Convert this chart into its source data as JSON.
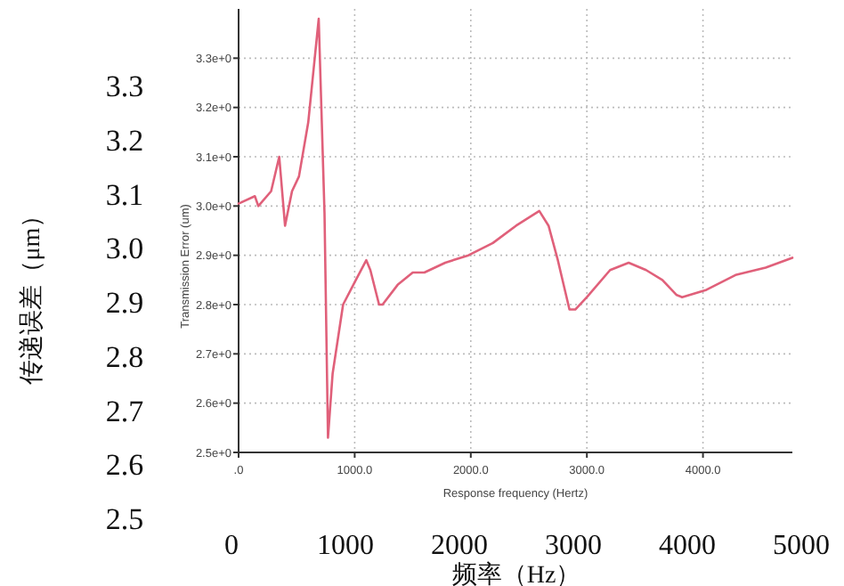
{
  "chart_data": {
    "type": "line",
    "xlabel": "Response frequency (Hertz)",
    "ylabel": "Transmission Error (um)",
    "x2label": "频率（Hz）",
    "y2label": "传递误差（μm）",
    "xlim": [
      0,
      4770
    ],
    "ylim": [
      2.5,
      3.4
    ],
    "xticks": [
      {
        "value": 0,
        "label": ".0"
      },
      {
        "value": 1000,
        "label": "1000.0"
      },
      {
        "value": 2000,
        "label": "2000.0"
      },
      {
        "value": 3000,
        "label": "3000.0"
      },
      {
        "value": 4000,
        "label": "4000.0"
      }
    ],
    "yticks": [
      {
        "value": 2.5,
        "label": "2.5e+0"
      },
      {
        "value": 2.6,
        "label": "2.6e+0"
      },
      {
        "value": 2.7,
        "label": "2.7e+0"
      },
      {
        "value": 2.8,
        "label": "2.8e+0"
      },
      {
        "value": 2.9,
        "label": "2.9e+0"
      },
      {
        "value": 3.0,
        "label": "3.0e+0"
      },
      {
        "value": 3.1,
        "label": "3.1e+0"
      },
      {
        "value": 3.2,
        "label": "3.2e+0"
      },
      {
        "value": 3.3,
        "label": "3.3e+0"
      }
    ],
    "x2lim": [
      0,
      5000
    ],
    "x2ticks": [
      0,
      1000,
      2000,
      3000,
      4000,
      5000
    ],
    "y2lim": [
      2.5,
      3.3
    ],
    "y2ticks": [
      {
        "value": 2.5,
        "label": "2.5"
      },
      {
        "value": 2.6,
        "label": "2.6"
      },
      {
        "value": 2.7,
        "label": "2.7"
      },
      {
        "value": 2.8,
        "label": "2.8"
      },
      {
        "value": 2.9,
        "label": "2.9"
      },
      {
        "value": 3.0,
        "label": "3.0"
      },
      {
        "value": 3.1,
        "label": "3.1"
      },
      {
        "value": 3.2,
        "label": "3.2"
      },
      {
        "value": 3.3,
        "label": "3.3"
      }
    ],
    "grid": true,
    "marker": "none",
    "line_style": "solid",
    "series": [
      {
        "color": "#e0607a",
        "x": [
          0,
          140,
          170,
          280,
          350,
          400,
          460,
          520,
          600,
          690,
          740,
          770,
          810,
          900,
          1010,
          1100,
          1135,
          1210,
          1240,
          1370,
          1500,
          1600,
          1780,
          1980,
          2190,
          2390,
          2590,
          2670,
          2750,
          2850,
          2900,
          3000,
          3200,
          3360,
          3510,
          3650,
          3770,
          3820,
          4030,
          4280,
          4540,
          4770
        ],
        "values": [
          3.005,
          3.02,
          3.0,
          3.03,
          3.1,
          2.96,
          3.03,
          3.06,
          3.17,
          3.38,
          2.985,
          2.53,
          2.66,
          2.8,
          2.85,
          2.89,
          2.87,
          2.8,
          2.8,
          2.84,
          2.865,
          2.865,
          2.885,
          2.9,
          2.925,
          2.96,
          2.99,
          2.96,
          2.89,
          2.79,
          2.79,
          2.815,
          2.87,
          2.885,
          2.87,
          2.85,
          2.82,
          2.815,
          2.83,
          2.86,
          2.875,
          2.895
        ]
      }
    ]
  }
}
